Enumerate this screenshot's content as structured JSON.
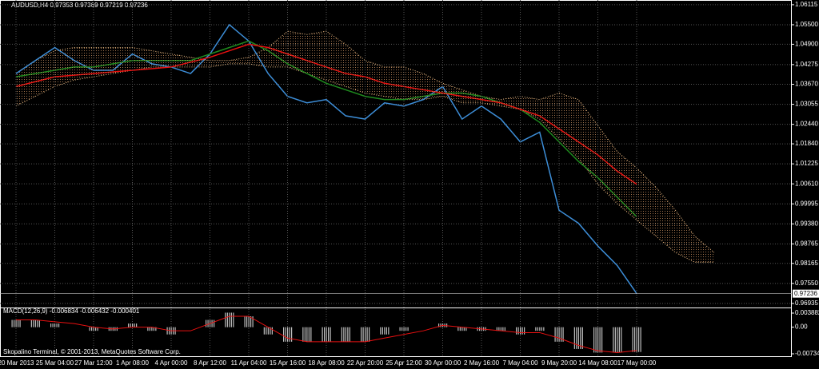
{
  "chart_data": [
    {
      "type": "line",
      "title": "AUDUSD,H4  0.97353 0.97369 0.97219 0.97236",
      "footer": "Skopalino Terminal, © 2001-2013, MetaQuotes Software Corp.",
      "categories": [
        "20 Mar 2013",
        null,
        "25 Mar 04:00",
        null,
        "27 Mar 12:00",
        null,
        "1 Apr 08:00",
        null,
        "4 Apr 00:00",
        null,
        "8 Apr 12:00",
        null,
        "11 Apr 04:00",
        null,
        "15 Apr 16:00",
        null,
        "18 Apr 08:00",
        null,
        "22 Apr 20:00",
        null,
        "25 Apr 12:00",
        null,
        "30 Apr 00:00",
        null,
        "2 May 16:00",
        null,
        "7 May 04:00",
        null,
        "9 May 20:00",
        null,
        "14 May 08:00",
        null,
        "17 May 00:00",
        null,
        null,
        null,
        null
      ],
      "ylim": [
        0.9681,
        1.0626
      ],
      "yticks": [
        1.06115,
        {
          "value": 1.055,
          "label": "1.05500"
        },
        {
          "value": 1.049,
          "label": "1.04900"
        },
        1.04275,
        {
          "value": 1.0367,
          "label": "1.03670"
        },
        1.03055,
        {
          "value": 1.0244,
          "label": "1.02440"
        },
        {
          "value": 1.0184,
          "label": "1.01840"
        },
        1.01225,
        {
          "value": 1.0061,
          "label": "1.00610"
        },
        0.99995,
        {
          "value": 0.9938,
          "label": "0.99380"
        },
        0.98765,
        0.98165,
        {
          "value": 0.9755,
          "label": "0.97550"
        },
        0.96935
      ],
      "current_price": 0.97236,
      "grid": true,
      "series": [
        {
          "color": "#f5c48a",
          "style": "dotted",
          "values": [
            1.04,
            1.044,
            1.047,
            1.048,
            1.048,
            1.048,
            1.048,
            1.047,
            1.046,
            1.045,
            1.044,
            1.044,
            1.045,
            1.048,
            1.053,
            1.052,
            1.053,
            1.049,
            1.044,
            1.042,
            1.042,
            1.04,
            1.037,
            1.035,
            1.033,
            1.032,
            1.033,
            1.032,
            1.034,
            1.032,
            1.024,
            1.016,
            1.011,
            1.005,
            0.998,
            0.99,
            0.985
          ]
        },
        {
          "color": "#f5c48a",
          "style": "dotted",
          "values": [
            1.03,
            1.033,
            1.036,
            1.038,
            1.039,
            1.04,
            1.041,
            1.042,
            1.042,
            1.042,
            1.042,
            1.043,
            1.043,
            1.042,
            1.042,
            1.04,
            1.038,
            1.036,
            1.034,
            1.033,
            1.032,
            1.032,
            1.033,
            1.031,
            1.031,
            1.03,
            1.029,
            1.026,
            1.02,
            1.014,
            1.006,
            1.0,
            0.995,
            0.99,
            0.985,
            0.982,
            0.982
          ]
        },
        {
          "color": "#3d8ed8",
          "style": "solid",
          "values": [
            1.04,
            1.044,
            1.048,
            1.044,
            1.041,
            1.041,
            1.046,
            1.043,
            1.042,
            1.04,
            1.046,
            1.055,
            1.05,
            1.04,
            1.033,
            1.031,
            1.032,
            1.027,
            1.026,
            1.031,
            1.03,
            1.032,
            1.036,
            1.026,
            1.03,
            1.026,
            1.019,
            1.022,
            0.998,
            0.994,
            0.987,
            0.981,
            0.9724,
            null,
            null,
            null,
            null
          ]
        },
        {
          "color": "#1e8a1e",
          "style": "solid",
          "values": [
            1.039,
            1.04,
            1.041,
            1.042,
            1.042,
            1.043,
            1.044,
            1.044,
            1.044,
            1.044,
            1.046,
            1.048,
            1.05,
            1.047,
            1.043,
            1.04,
            1.037,
            1.035,
            1.033,
            1.032,
            1.032,
            1.033,
            1.034,
            1.034,
            1.033,
            1.031,
            1.029,
            1.025,
            1.019,
            1.013,
            1.008,
            1.002,
            0.996,
            null,
            null,
            null,
            null
          ]
        },
        {
          "color": "#e81010",
          "style": "solid",
          "values": [
            1.036,
            1.0375,
            1.039,
            1.0395,
            1.04,
            1.0405,
            1.041,
            1.0415,
            1.042,
            1.0435,
            1.045,
            1.047,
            1.049,
            1.048,
            1.046,
            1.044,
            1.042,
            1.04,
            1.039,
            1.037,
            1.036,
            1.035,
            1.034,
            1.033,
            1.032,
            1.031,
            1.029,
            1.027,
            1.023,
            1.019,
            1.015,
            1.01,
            1.006,
            null,
            null,
            null,
            null
          ]
        }
      ]
    },
    {
      "type": "bar",
      "title": "MACD(12,26,9) -0.006834 -0.006432 -0.000401",
      "ylim": [
        -0.008,
        0.0052
      ],
      "yticks": [
        0.003882,
        {
          "value": 0,
          "label": "0.00"
        },
        -0.00734
      ],
      "color": "#c0c0c0",
      "values": [
        0.002,
        0.002,
        0.001,
        0.0,
        -0.001,
        -0.001,
        0.001,
        -0.001,
        -0.002,
        0.0,
        0.002,
        0.004,
        0.003,
        -0.002,
        -0.004,
        -0.004,
        -0.004,
        -0.004,
        -0.004,
        -0.002,
        -0.001,
        0.0,
        0.001,
        -0.001,
        -0.001,
        -0.001,
        -0.002,
        -0.001,
        -0.004,
        -0.006,
        -0.007,
        -0.007,
        -0.006834
      ],
      "series": [
        {
          "color": "#e81010",
          "values": [
            0.002,
            0.002,
            0.0015,
            0.001,
            0,
            -0.0005,
            0,
            0,
            -0.001,
            -0.001,
            0.001,
            0.003,
            0.003,
            0,
            -0.003,
            -0.004,
            -0.004,
            -0.004,
            -0.004,
            -0.003,
            -0.002,
            -0.001,
            0.0005,
            0,
            -0.0005,
            -0.001,
            -0.0015,
            -0.0015,
            -0.003,
            -0.005,
            -0.0065,
            -0.007,
            -0.006432
          ]
        }
      ]
    }
  ]
}
